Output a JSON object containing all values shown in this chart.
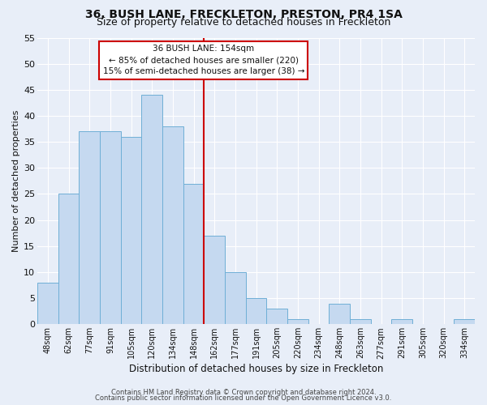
{
  "title": "36, BUSH LANE, FRECKLETON, PRESTON, PR4 1SA",
  "subtitle": "Size of property relative to detached houses in Freckleton",
  "xlabel": "Distribution of detached houses by size in Freckleton",
  "ylabel": "Number of detached properties",
  "bar_labels": [
    "48sqm",
    "62sqm",
    "77sqm",
    "91sqm",
    "105sqm",
    "120sqm",
    "134sqm",
    "148sqm",
    "162sqm",
    "177sqm",
    "191sqm",
    "205sqm",
    "220sqm",
    "234sqm",
    "248sqm",
    "263sqm",
    "277sqm",
    "291sqm",
    "305sqm",
    "320sqm",
    "334sqm"
  ],
  "bar_values": [
    8,
    25,
    37,
    37,
    36,
    44,
    38,
    27,
    17,
    10,
    5,
    3,
    1,
    0,
    4,
    1,
    0,
    1,
    0,
    0,
    1
  ],
  "bar_color": "#c5d9f0",
  "bar_edge_color": "#6fafd6",
  "ylim": [
    0,
    55
  ],
  "yticks": [
    0,
    5,
    10,
    15,
    20,
    25,
    30,
    35,
    40,
    45,
    50,
    55
  ],
  "vline_color": "#cc0000",
  "annotation_title": "36 BUSH LANE: 154sqm",
  "annotation_line1": "← 85% of detached houses are smaller (220)",
  "annotation_line2": "15% of semi-detached houses are larger (38) →",
  "annotation_box_color": "#cc0000",
  "footer_line1": "Contains HM Land Registry data © Crown copyright and database right 2024.",
  "footer_line2": "Contains public sector information licensed under the Open Government Licence v3.0.",
  "bg_color": "#e8eef8",
  "grid_color": "#ffffff",
  "title_fontsize": 10,
  "subtitle_fontsize": 9
}
